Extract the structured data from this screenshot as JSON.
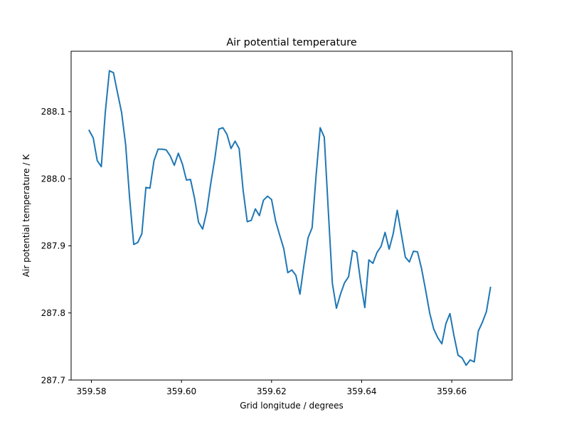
{
  "chart_data": {
    "type": "line",
    "title": "Air potential temperature",
    "xlabel": "Grid longitude / degrees",
    "ylabel": "Air potential temperature / K",
    "xlim": [
      359.5755,
      359.6734
    ],
    "ylim": [
      287.7,
      288.19
    ],
    "x_ticks": [
      359.58,
      359.6,
      359.62,
      359.64,
      359.66
    ],
    "x_tick_labels": [
      "359.58",
      "359.60",
      "359.62",
      "359.64",
      "359.66"
    ],
    "y_ticks": [
      287.7,
      287.8,
      287.9,
      288.0,
      288.1
    ],
    "y_tick_labels": [
      "287.7",
      "287.8",
      "287.9",
      "288.0",
      "288.1"
    ],
    "grid": false,
    "legend": "none",
    "line_color": "#1f77b4",
    "series": [
      {
        "x": [
          359.5795,
          359.5804,
          359.5813,
          359.5822,
          359.5831,
          359.584,
          359.5849,
          359.5858,
          359.5867,
          359.5876,
          359.5885,
          359.5894,
          359.5903,
          359.5912,
          359.5921,
          359.593,
          359.5939,
          359.5948,
          359.5957,
          359.5966,
          359.5975,
          359.5984,
          359.5993,
          359.6002,
          359.6011,
          359.602,
          359.6029,
          359.6038,
          359.6047,
          359.6056,
          359.6065,
          359.6074,
          359.6083,
          359.6092,
          359.6101,
          359.611,
          359.6119,
          359.6128,
          359.6137,
          359.6146,
          359.6155,
          359.6164,
          359.6173,
          359.6182,
          359.6191,
          359.62,
          359.6209,
          359.6218,
          359.6227,
          359.6236,
          359.6245,
          359.6254,
          359.6263,
          359.6272,
          359.6281,
          359.629,
          359.6299,
          359.6308,
          359.6317,
          359.6326,
          359.6335,
          359.6344,
          359.6353,
          359.6362,
          359.6371,
          359.638,
          359.6389,
          359.6398,
          359.6407,
          359.6416,
          359.6425,
          359.6434,
          359.6443,
          359.6452,
          359.6461,
          359.647,
          359.6479,
          359.6488,
          359.6497,
          359.6506,
          359.6515,
          359.6524,
          359.6533,
          359.6542,
          359.6551,
          359.656,
          359.6569,
          359.6578,
          359.6587,
          359.6596,
          359.6605,
          359.6614,
          359.6623,
          359.6632,
          359.6641,
          359.665,
          359.6659,
          359.6668,
          359.6677,
          359.6686
        ],
        "y": [
          288.072,
          288.061,
          288.027,
          288.018,
          288.1,
          288.161,
          288.158,
          288.128,
          288.099,
          288.051,
          287.97,
          287.902,
          287.905,
          287.918,
          287.987,
          287.986,
          288.027,
          288.044,
          288.044,
          288.043,
          288.034,
          288.02,
          288.038,
          288.022,
          287.998,
          287.999,
          287.971,
          287.935,
          287.925,
          287.951,
          287.993,
          288.03,
          288.074,
          288.076,
          288.066,
          288.045,
          288.056,
          288.045,
          287.982,
          287.936,
          287.938,
          287.955,
          287.945,
          287.968,
          287.974,
          287.969,
          287.937,
          287.916,
          287.896,
          287.86,
          287.864,
          287.856,
          287.828,
          287.872,
          287.912,
          287.927,
          288.006,
          288.076,
          288.062,
          287.952,
          287.844,
          287.807,
          287.828,
          287.845,
          287.854,
          287.893,
          287.89,
          287.845,
          287.808,
          287.879,
          287.874,
          287.89,
          287.899,
          287.92,
          287.895,
          287.918,
          287.953,
          287.918,
          287.883,
          287.876,
          287.892,
          287.891,
          287.866,
          287.834,
          287.8,
          287.776,
          287.763,
          287.754,
          287.784,
          287.799,
          287.766,
          287.737,
          287.733,
          287.722,
          287.73,
          287.727,
          287.773,
          287.786,
          287.802,
          287.838
        ]
      }
    ]
  }
}
